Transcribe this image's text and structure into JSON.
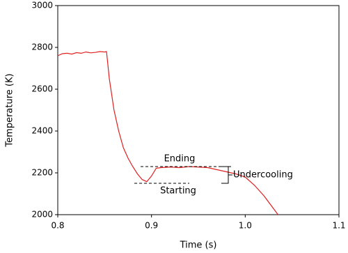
{
  "chart_data": {
    "type": "line",
    "x_label": "Time (s)",
    "y_label": "Temperature (K)",
    "x": [
      0.8,
      0.805,
      0.81,
      0.815,
      0.82,
      0.825,
      0.83,
      0.835,
      0.84,
      0.845,
      0.85,
      0.852,
      0.855,
      0.86,
      0.865,
      0.87,
      0.875,
      0.88,
      0.885,
      0.89,
      0.895,
      0.9,
      0.905,
      0.91,
      0.92,
      0.93,
      0.94,
      0.95,
      0.96,
      0.97,
      0.98,
      0.99,
      1.0,
      1.01,
      1.02,
      1.03,
      1.035
    ],
    "series": [
      {
        "color": "#e02020",
        "values": [
          2760,
          2770,
          2772,
          2768,
          2775,
          2772,
          2778,
          2774,
          2776,
          2780,
          2778,
          2780,
          2650,
          2500,
          2400,
          2320,
          2270,
          2230,
          2195,
          2168,
          2158,
          2185,
          2222,
          2225,
          2228,
          2225,
          2230,
          2228,
          2225,
          2215,
          2205,
          2195,
          2180,
          2140,
          2090,
          2030,
          2000
        ]
      }
    ],
    "xlim": [
      0.8,
      1.1
    ],
    "xticks": [
      0.8,
      0.9,
      {
        "value": 1,
        "label": "1.0"
      },
      1.1
    ],
    "ylim": [
      2000,
      3000
    ],
    "yticks": [
      2000,
      2200,
      2400,
      2600,
      2800,
      3000
    ],
    "annotations": [
      "Ending",
      "Starting",
      "Undercooling"
    ]
  }
}
